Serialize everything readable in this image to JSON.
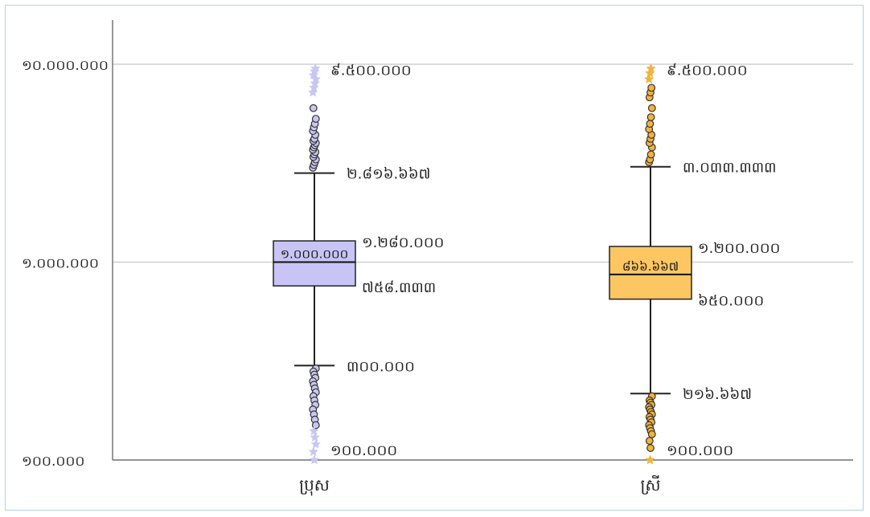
{
  "chart_data": {
    "type": "boxplot",
    "scale": "log",
    "ylim": [
      100000,
      10000000
    ],
    "grid": true,
    "y_ticks": [
      {
        "value": 10000000,
        "label": "១០.០០០.០០០"
      },
      {
        "value": 1000000,
        "label": "១.០០០.០០០"
      },
      {
        "value": 100000,
        "label": "១០០.០០០"
      }
    ],
    "categories": [
      "ប្រុស",
      "ស្រី"
    ],
    "series": [
      {
        "category": "ប្រុស",
        "color": "#c8c4f5",
        "outlier_color": "#c9c6f2",
        "whisker_low": 300000,
        "q1": 758333,
        "median": 1000000,
        "q3": 1280000,
        "whisker_high": 2816667,
        "min": 100000,
        "max": 9500000,
        "labels": {
          "max": "៩.៥០០.០០០",
          "whisker_high": "២.៨១៦.៦៦៧",
          "q3": "១.២៨០.០០០",
          "median": "១.០០០.០០០",
          "q1": "៧៥៨.៣៣៣",
          "whisker_low": "៣០០.០០០",
          "min": "១០០.០០០"
        },
        "outliers_high": [
          3000000,
          3100000,
          3200000,
          3300000,
          3400000,
          3500000,
          3600000,
          3700000,
          3800000,
          3900000,
          4000000,
          4100000,
          4200000,
          4400000,
          4600000,
          4800000,
          5000000,
          5300000,
          6000000
        ],
        "extremes_high": [
          7200000,
          7600000,
          8000000,
          8400000,
          8800000,
          9200000,
          9500000
        ],
        "outliers_low": [
          290000,
          280000,
          270000,
          260000,
          250000,
          240000,
          230000,
          220000,
          210000,
          200000,
          190000,
          180000,
          170000,
          160000,
          150000
        ],
        "extremes_low": [
          140000,
          130000,
          120000,
          110000,
          100000
        ]
      },
      {
        "category": "ស្រី",
        "color": "#fdc662",
        "outlier_color": "#f3b23c",
        "whisker_low": 216667,
        "q1": 650000,
        "median": 866667,
        "q3": 1200000,
        "whisker_high": 3033333,
        "min": 100000,
        "max": 9500000,
        "labels": {
          "max": "៩.៥០០.០០០",
          "whisker_high": "៣.០៣៣.៣៣៣",
          "q3": "១.២០០.០០០",
          "median": "៨៦៦.៦៦៧",
          "q1": "៦៥០.០០០",
          "whisker_low": "២១៦.៦៦៧",
          "min": "១០០.០០០"
        },
        "outliers_high": [
          3200000,
          3300000,
          3500000,
          3800000,
          4000000,
          4200000,
          4400000,
          4700000,
          5000000,
          5400000,
          6000000,
          6800000,
          7200000,
          7600000
        ],
        "extremes_high": [
          8400000,
          9000000,
          9500000
        ],
        "outliers_low": [
          210000,
          200000,
          195000,
          190000,
          185000,
          180000,
          175000,
          170000,
          165000,
          160000,
          155000,
          150000,
          145000,
          140000,
          135000,
          125000,
          115000
        ],
        "extremes_low": [
          100000
        ]
      }
    ]
  }
}
